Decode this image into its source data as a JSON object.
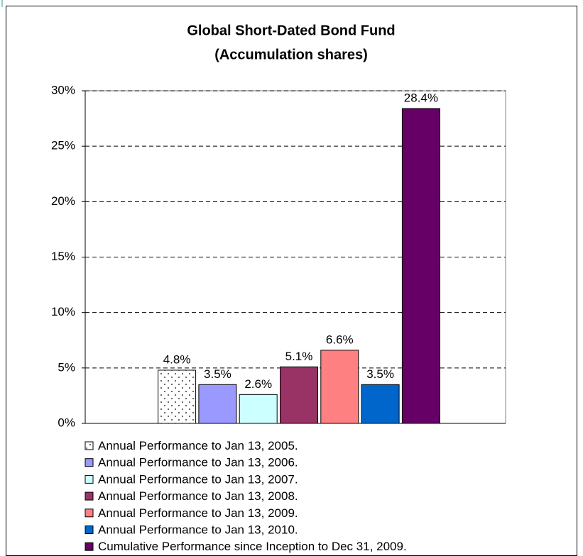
{
  "chart_data": {
    "type": "bar",
    "title": "Global Short-Dated Bond Fund",
    "subtitle": "(Accumulation shares)",
    "categories": [
      null
    ],
    "series": [
      {
        "name": "Annual Performance to Jan 13, 2005.",
        "color": "#ffffff",
        "pattern": "dots",
        "values": [
          4.8
        ],
        "value_labels": [
          "4.8%"
        ]
      },
      {
        "name": "Annual Performance to Jan 13, 2006.",
        "color": "#9999ff",
        "values": [
          3.5
        ],
        "value_labels": [
          "3.5%"
        ]
      },
      {
        "name": "Annual Performance to Jan 13, 2007.",
        "color": "#ccffff",
        "pattern": "vstripes",
        "values": [
          2.6
        ],
        "value_labels": [
          "2.6%"
        ]
      },
      {
        "name": "Annual Performance to Jan 13, 2008.",
        "color": "#993366",
        "values": [
          5.1
        ],
        "value_labels": [
          "5.1%"
        ]
      },
      {
        "name": "Annual Performance to Jan 13, 2009.",
        "color": "#ff8080",
        "values": [
          6.6
        ],
        "value_labels": [
          "6.6%"
        ]
      },
      {
        "name": "Annual Performance to Jan 13, 2010.",
        "color": "#0066cc",
        "values": [
          3.5
        ],
        "value_labels": [
          "3.5%"
        ]
      },
      {
        "name": "Cumulative Performance since Inception to Dec 31, 2009.",
        "color": "#660066",
        "values": [
          28.4
        ],
        "value_labels": [
          "28.4%"
        ]
      }
    ],
    "ylim": [
      0,
      30
    ],
    "yticks": [
      {
        "value": 0,
        "label": "0%"
      },
      {
        "value": 5,
        "label": "5%"
      },
      {
        "value": 10,
        "label": "10%"
      },
      {
        "value": 15,
        "label": "15%"
      },
      {
        "value": 20,
        "label": "20%"
      },
      {
        "value": 25,
        "label": "25%"
      },
      {
        "value": 30,
        "label": "30%"
      }
    ],
    "grid": true,
    "legend": "bottom"
  }
}
